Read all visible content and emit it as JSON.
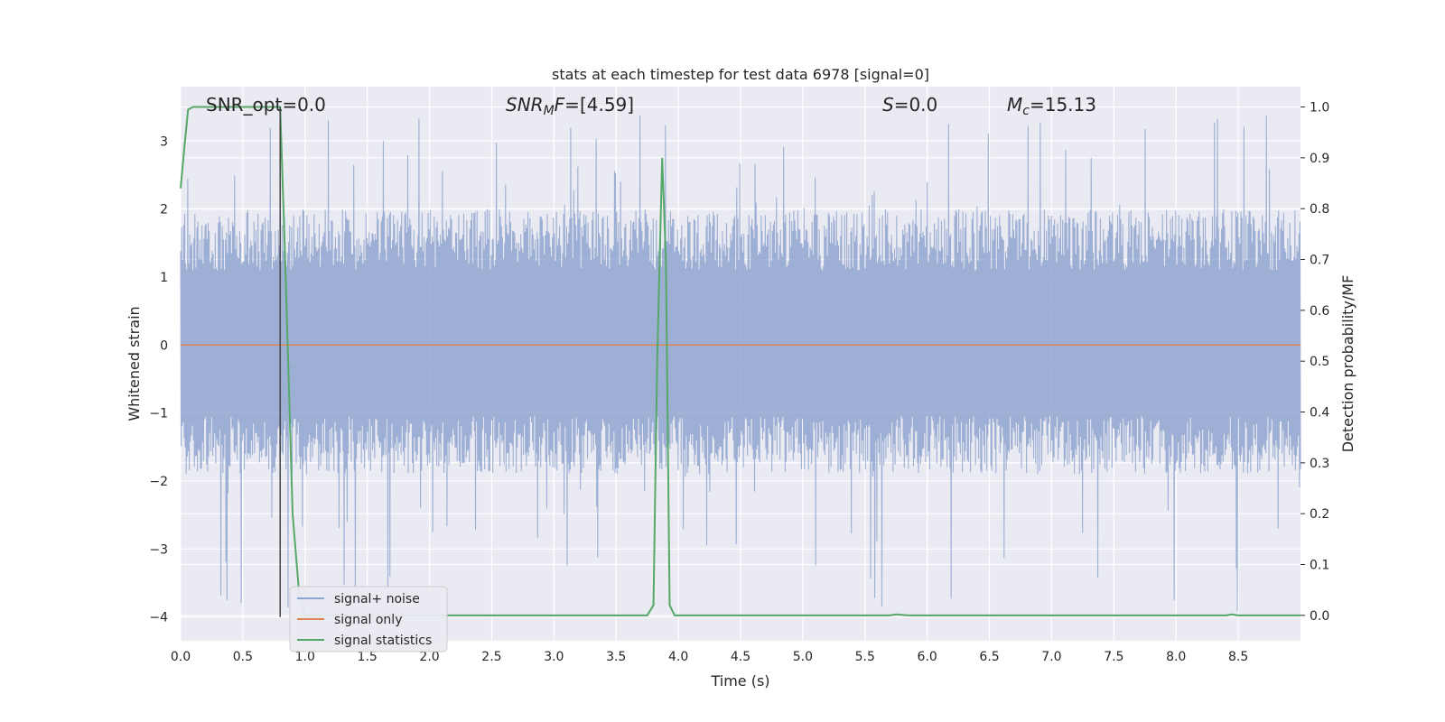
{
  "chart_data": {
    "type": "line",
    "title": "stats at each timestep for test data 6978 [signal=0]",
    "xlabel": "Time (s)",
    "ylabel_left": "Whitened strain",
    "ylabel_right": "Detection probability/MF",
    "xlim": [
      0.0,
      9.0
    ],
    "ylim_left": [
      -4.35,
      3.8
    ],
    "ylim_right": [
      -0.05,
      1.04
    ],
    "grid": true,
    "legend_position": "lower-left",
    "x_ticks": [
      "0.0",
      "0.5",
      "1.0",
      "1.5",
      "2.0",
      "2.5",
      "3.0",
      "3.5",
      "4.0",
      "4.5",
      "5.0",
      "5.5",
      "6.0",
      "6.5",
      "7.0",
      "7.5",
      "8.0",
      "8.5"
    ],
    "y_left_ticks": [
      "3",
      "2",
      "1",
      "0",
      "−1",
      "−2",
      "−3",
      "−4"
    ],
    "y_right_ticks": [
      "1.0",
      "0.9",
      "0.8",
      "0.7",
      "0.6",
      "0.5",
      "0.4",
      "0.3",
      "0.2",
      "0.1",
      "0.0"
    ],
    "annotations": {
      "snr_opt": "SNR_opt=0.0",
      "snr_mf": "[4.59]",
      "s_label": "=0.0",
      "mc_label": "=15.13"
    },
    "marker_line_x": 0.8,
    "noise_envelope": {
      "typical_upper": 2.0,
      "typical_lower": -1.9,
      "peak_upper": 3.4,
      "peak_lower": -4.0
    },
    "series": [
      {
        "name": "signal+ noise",
        "color": "#8fa4cf",
        "axis": "left",
        "note_values": "dense noise trace between approx -4.0 and 3.4"
      },
      {
        "name": "signal only",
        "color": "#dd8452",
        "axis": "left",
        "x": [
          0.0,
          9.0
        ],
        "y": [
          0.0,
          0.0
        ]
      },
      {
        "name": "signal statistics",
        "color": "#55a868",
        "axis": "right",
        "x": [
          0.0,
          0.03,
          0.06,
          0.1,
          0.2,
          0.3,
          0.5,
          0.7,
          0.8,
          0.84,
          0.9,
          0.95,
          1.0,
          1.5,
          2.0,
          2.5,
          3.0,
          3.5,
          3.75,
          3.8,
          3.83,
          3.87,
          3.9,
          3.93,
          3.97,
          4.0,
          4.5,
          5.0,
          5.5,
          5.7,
          5.75,
          5.85,
          6.0,
          6.5,
          7.0,
          7.5,
          8.0,
          8.4,
          8.45,
          8.5,
          9.0
        ],
        "y": [
          0.84,
          0.92,
          0.995,
          1.0,
          1.0,
          1.0,
          1.0,
          1.0,
          1.0,
          0.7,
          0.2,
          0.05,
          0.0,
          0.0,
          0.0,
          0.0,
          0.0,
          0.0,
          0.0,
          0.02,
          0.5,
          0.9,
          0.7,
          0.02,
          0.0,
          0.0,
          0.0,
          0.0,
          0.0,
          0.0,
          0.002,
          0.0,
          0.0,
          0.0,
          0.0,
          0.0,
          0.0,
          0.0,
          0.002,
          0.0,
          0.0
        ]
      }
    ]
  }
}
